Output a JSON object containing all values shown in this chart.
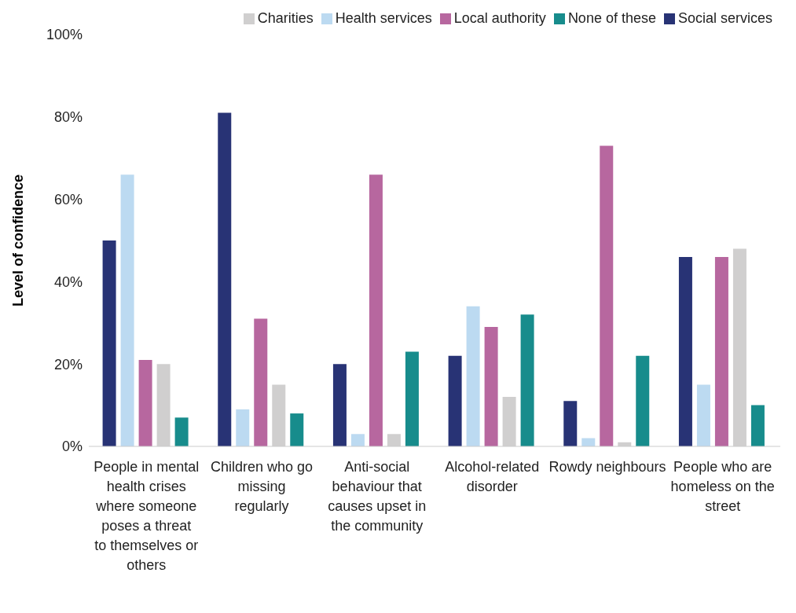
{
  "chart_data": {
    "type": "bar",
    "ylabel": "Level of confidence",
    "categories": [
      "People in mental health crises where someone poses a threat to themselves or others",
      "Children who go missing regularly",
      "Anti-social behaviour that causes upset in the community",
      "Alcohol-related disorder",
      "Rowdy neighbours",
      "People who are homeless on the street"
    ],
    "series": [
      {
        "name": "Social services",
        "color": "#283375",
        "values": [
          50,
          81,
          20,
          22,
          11,
          46
        ]
      },
      {
        "name": "Health services",
        "color": "#bcdaf1",
        "values": [
          66,
          9,
          3,
          34,
          2,
          15
        ]
      },
      {
        "name": "Local authority",
        "color": "#b7679f",
        "values": [
          21,
          31,
          66,
          29,
          73,
          46
        ]
      },
      {
        "name": "Charities",
        "color": "#d0cfcf",
        "values": [
          20,
          15,
          3,
          12,
          1,
          48
        ]
      },
      {
        "name": "None of these",
        "color": "#178c8c",
        "values": [
          7,
          8,
          23,
          32,
          22,
          10
        ]
      }
    ],
    "ylim": [
      0,
      100
    ],
    "yticks": [
      {
        "value": 0,
        "label": "0%"
      },
      {
        "value": 20,
        "label": "20%"
      },
      {
        "value": 40,
        "label": "40%"
      },
      {
        "value": 60,
        "label": "60%"
      },
      {
        "value": 80,
        "label": "80%"
      },
      {
        "value": 100,
        "label": "100%"
      }
    ],
    "legend": "top right"
  }
}
